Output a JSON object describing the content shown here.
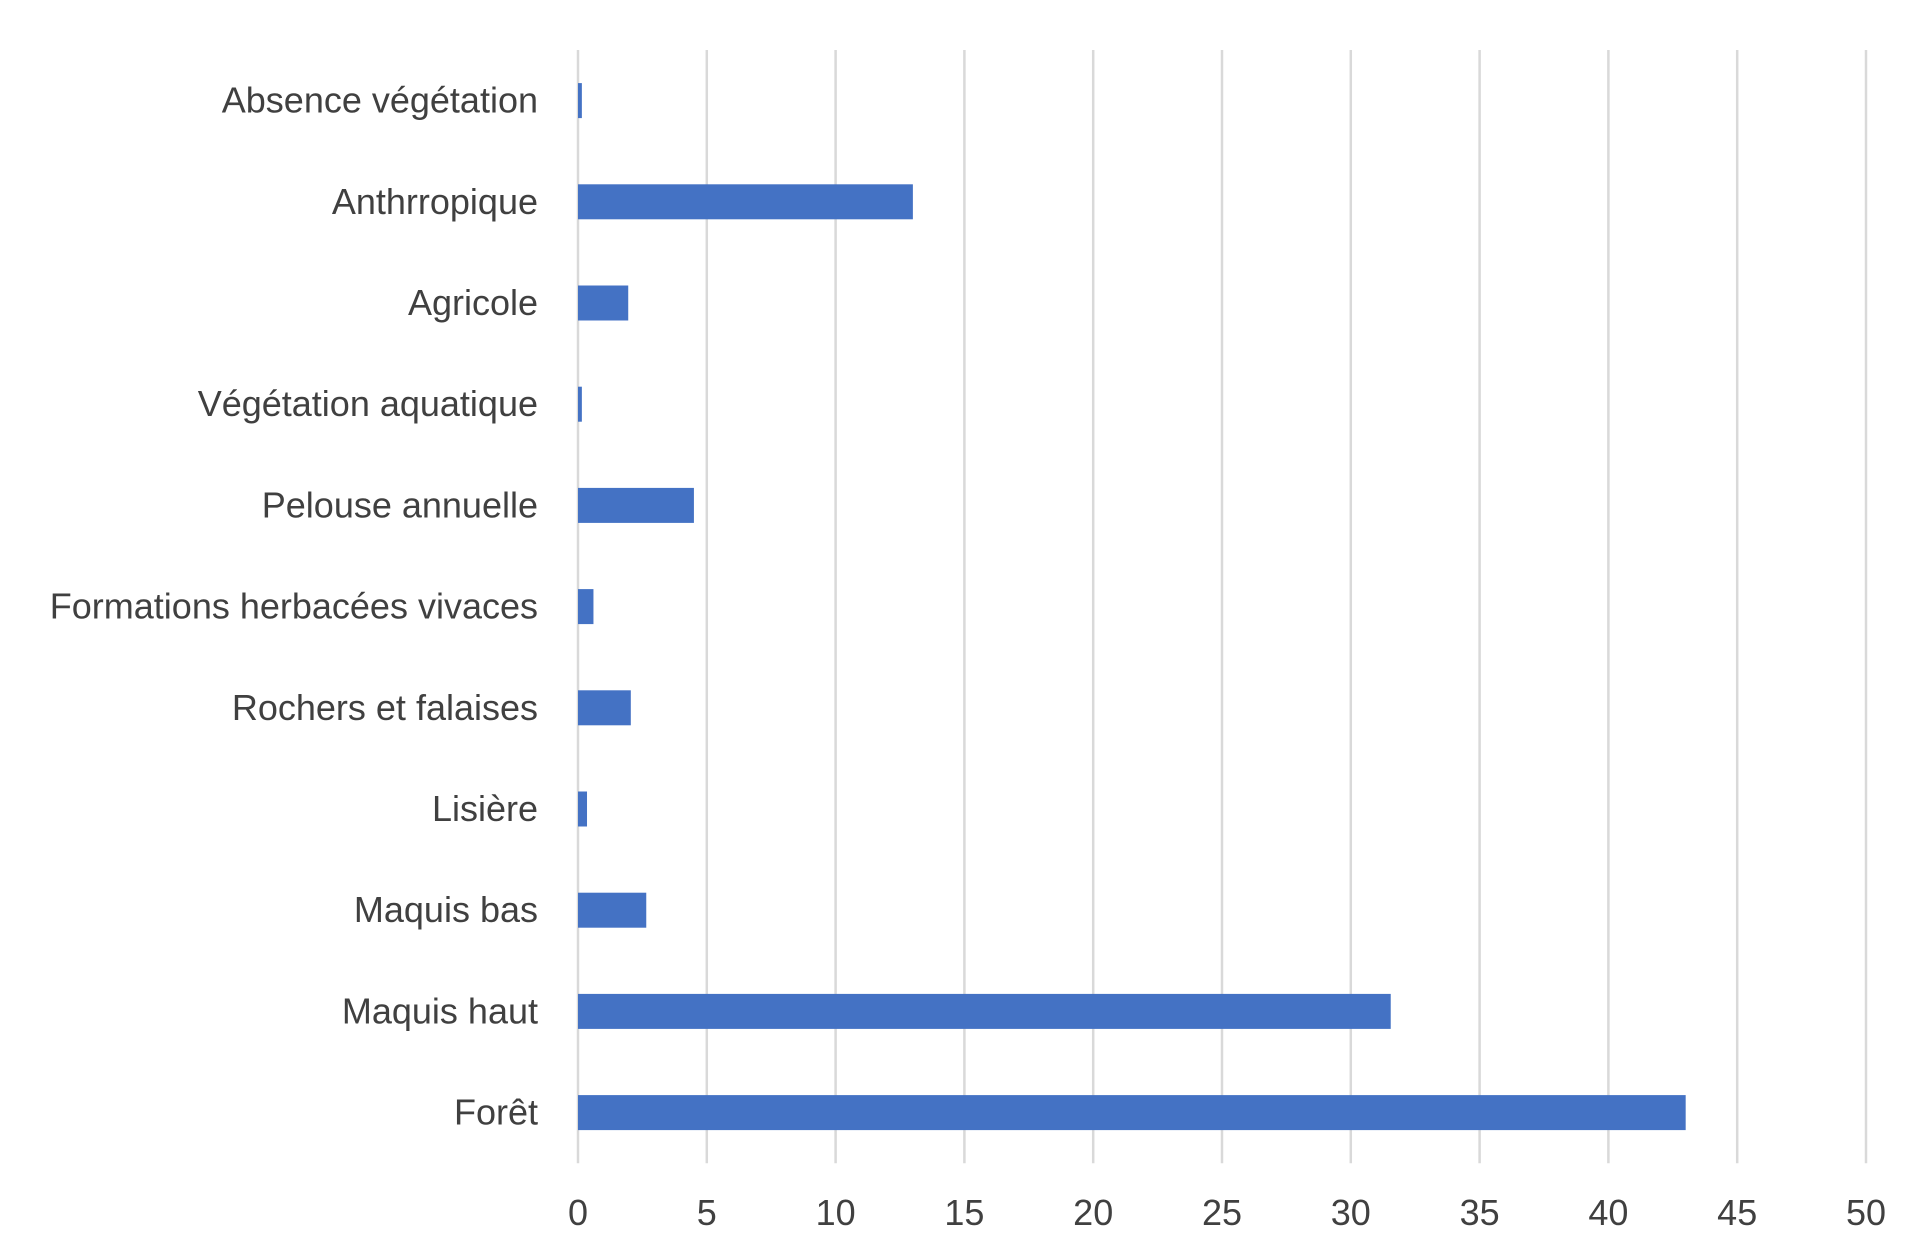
{
  "chart_data": {
    "type": "bar",
    "orientation": "horizontal",
    "categories": [
      "Absence végétation",
      "Anthrropique",
      "Agricole",
      "Végétation aquatique",
      "Pelouse annuelle",
      "Formations herbacées vivaces",
      "Rochers et falaises",
      "Lisière",
      "Maquis bas",
      "Maquis haut",
      "Forêt"
    ],
    "values": [
      0.15,
      13,
      1.95,
      0.15,
      4.5,
      0.6,
      2.05,
      0.35,
      2.65,
      31.55,
      43
    ],
    "x_ticks": [
      "0",
      "5",
      "10",
      "15",
      "20",
      "25",
      "30",
      "35",
      "40",
      "45",
      "50"
    ],
    "xlim": [
      0,
      50
    ],
    "title": "",
    "xlabel": "",
    "ylabel": "",
    "grid": "vertical",
    "legend": "none",
    "bar_color": "#4472c4",
    "grid_color": "#d9d9d9",
    "text_color": "#404040"
  }
}
